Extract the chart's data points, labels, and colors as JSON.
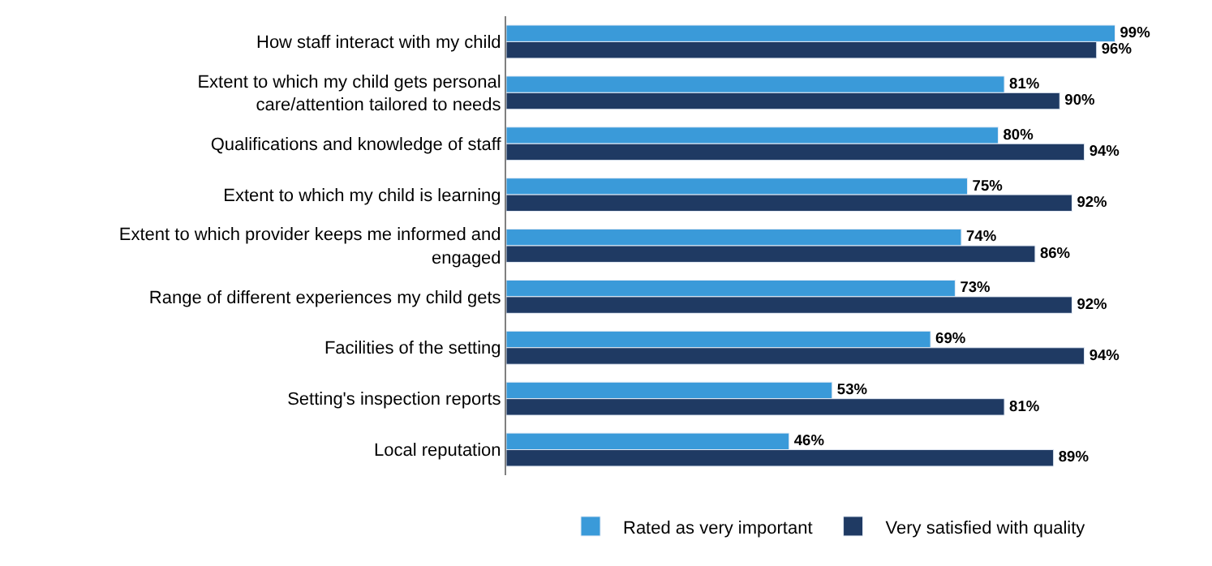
{
  "chart_data": {
    "type": "bar",
    "orientation": "horizontal",
    "categories": [
      "How staff interact with my child",
      "Extent to which my child gets personal care/attention tailored to needs",
      "Qualifications and knowledge of staff",
      "Extent to which my child is learning",
      "Extent to which provider keeps me informed and engaged",
      "Range of different experiences my child gets",
      "Facilities of the setting",
      "Setting's inspection reports",
      "Local reputation"
    ],
    "series": [
      {
        "name": "Rated as very important",
        "color": "#3a9ad9",
        "values": [
          99,
          81,
          80,
          75,
          74,
          73,
          69,
          53,
          46
        ],
        "value_labels": [
          "99%",
          "81%",
          "80%",
          "75%",
          "74%",
          "73%",
          "69%",
          "53%",
          "46%"
        ]
      },
      {
        "name": "Very satisfied with quality",
        "color": "#1f3a63",
        "values": [
          96,
          90,
          94,
          92,
          86,
          92,
          94,
          81,
          89
        ],
        "value_labels": [
          "96%",
          "90%",
          "94%",
          "92%",
          "86%",
          "92%",
          "94%",
          "81%",
          "89%"
        ]
      }
    ],
    "tick_labels": "y",
    "legend": "bottom"
  }
}
